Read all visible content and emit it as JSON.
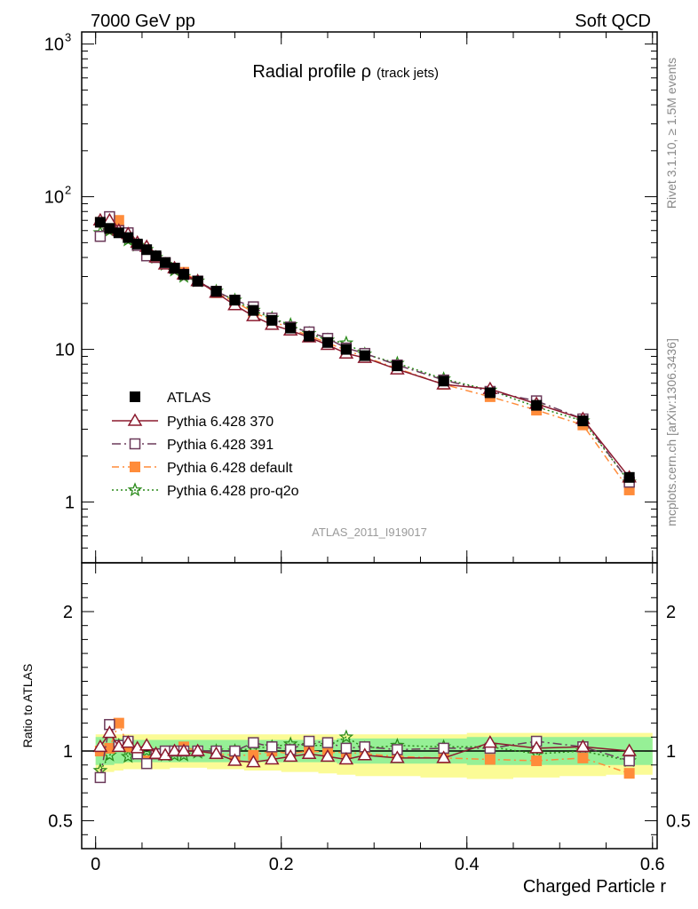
{
  "header": {
    "left": "7000 GeV pp",
    "right": "Soft QCD"
  },
  "side_labels": {
    "rivet": "Rivet 3.1.10, ≥ 1.5M events",
    "mcplots": "mcplots.cern.ch [arXiv:1306.3436]"
  },
  "chart_data": {
    "type": "line",
    "title": "Radial profile ρ",
    "subtitle": "(track jets)",
    "watermark": "ATLAS_2011_I919017",
    "xlabel": "Charged Particle r",
    "ylabel": "",
    "ratio_ylabel": "Ratio to ATLAS",
    "xlim": [
      -0.015,
      0.605
    ],
    "ylim": [
      0.4,
      1200
    ],
    "yscale": "log",
    "ratio_ylim": [
      0.3,
      2.35
    ],
    "x_ticks": [
      "0",
      "0.2",
      "0.4",
      "0.6"
    ],
    "y_ticks": [
      "1",
      "10",
      "10",
      "10"
    ],
    "y_tick_exponents": [
      "",
      "",
      "2",
      "3"
    ],
    "ratio_ticks": [
      "0.5",
      "1",
      "2"
    ],
    "legend_position": "lower-left",
    "x": [
      0.005,
      0.015,
      0.025,
      0.035,
      0.045,
      0.055,
      0.065,
      0.075,
      0.085,
      0.095,
      0.11,
      0.13,
      0.15,
      0.17,
      0.19,
      0.21,
      0.23,
      0.25,
      0.27,
      0.29,
      0.325,
      0.375,
      0.425,
      0.475,
      0.525,
      0.575
    ],
    "band_edges": [
      0.0,
      0.01,
      0.02,
      0.03,
      0.04,
      0.05,
      0.06,
      0.07,
      0.08,
      0.09,
      0.1,
      0.12,
      0.14,
      0.16,
      0.18,
      0.2,
      0.22,
      0.24,
      0.26,
      0.28,
      0.3,
      0.35,
      0.4,
      0.45,
      0.5,
      0.55,
      0.6
    ],
    "band_green": [
      [
        0.9,
        1.1
      ],
      [
        0.9,
        1.1
      ],
      [
        0.91,
        1.09
      ],
      [
        0.92,
        1.08
      ],
      [
        0.92,
        1.08
      ],
      [
        0.92,
        1.08
      ],
      [
        0.92,
        1.08
      ],
      [
        0.92,
        1.08
      ],
      [
        0.92,
        1.08
      ],
      [
        0.92,
        1.08
      ],
      [
        0.92,
        1.08
      ],
      [
        0.92,
        1.08
      ],
      [
        0.92,
        1.08
      ],
      [
        0.92,
        1.08
      ],
      [
        0.92,
        1.08
      ],
      [
        0.92,
        1.08
      ],
      [
        0.92,
        1.08
      ],
      [
        0.92,
        1.08
      ],
      [
        0.91,
        1.09
      ],
      [
        0.91,
        1.09
      ],
      [
        0.91,
        1.09
      ],
      [
        0.91,
        1.09
      ],
      [
        0.9,
        1.1
      ],
      [
        0.9,
        1.1
      ],
      [
        0.9,
        1.1
      ],
      [
        0.9,
        1.1
      ]
    ],
    "band_yellow": [
      [
        0.85,
        1.12
      ],
      [
        0.85,
        1.12
      ],
      [
        0.86,
        1.12
      ],
      [
        0.87,
        1.12
      ],
      [
        0.87,
        1.12
      ],
      [
        0.87,
        1.12
      ],
      [
        0.87,
        1.12
      ],
      [
        0.87,
        1.12
      ],
      [
        0.88,
        1.12
      ],
      [
        0.88,
        1.12
      ],
      [
        0.88,
        1.12
      ],
      [
        0.87,
        1.12
      ],
      [
        0.87,
        1.12
      ],
      [
        0.86,
        1.12
      ],
      [
        0.86,
        1.12
      ],
      [
        0.85,
        1.12
      ],
      [
        0.85,
        1.12
      ],
      [
        0.84,
        1.12
      ],
      [
        0.83,
        1.12
      ],
      [
        0.82,
        1.12
      ],
      [
        0.82,
        1.12
      ],
      [
        0.81,
        1.12
      ],
      [
        0.8,
        1.13
      ],
      [
        0.81,
        1.13
      ],
      [
        0.82,
        1.13
      ],
      [
        0.83,
        1.13
      ]
    ],
    "series": [
      {
        "name": "ATLAS",
        "color": "#000000",
        "marker": "filled-square",
        "dash": "",
        "values": [
          68,
          62,
          58,
          54,
          49,
          45,
          41,
          37,
          34,
          31,
          28,
          24,
          21,
          18,
          15.5,
          13.8,
          12.2,
          11.1,
          10.0,
          9.1,
          7.8,
          6.2,
          5.2,
          4.3,
          3.4,
          1.45
        ],
        "ratio": [
          1,
          1,
          1,
          1,
          1,
          1,
          1,
          1,
          1,
          1,
          1,
          1,
          1,
          1,
          1,
          1,
          1,
          1,
          1,
          1,
          1,
          1,
          1,
          1,
          1,
          1
        ]
      },
      {
        "name": "Pythia 6.428 370",
        "color": "#8b1a2e",
        "marker": "open-triangle",
        "dash": "",
        "values": [
          70,
          70,
          60,
          57,
          50,
          47,
          40,
          36,
          34,
          31,
          28,
          23.5,
          19.5,
          16.5,
          14.5,
          13.3,
          12.0,
          10.7,
          9.4,
          8.8,
          7.4,
          5.9,
          5.5,
          4.4,
          3.5,
          1.45
        ],
        "ratio": [
          1.03,
          1.13,
          1.03,
          1.06,
          1.02,
          1.04,
          0.98,
          0.97,
          1.0,
          1.0,
          1.0,
          0.98,
          0.93,
          0.92,
          0.94,
          0.96,
          0.98,
          0.96,
          0.94,
          0.97,
          0.95,
          0.95,
          1.06,
          1.02,
          1.03,
          1.0
        ]
      },
      {
        "name": "Pythia 6.428 391",
        "color": "#6b3a5a",
        "marker": "open-square",
        "dash": "10,4,2,4",
        "values": [
          55,
          74,
          60,
          58,
          48,
          41,
          40,
          37,
          34,
          31,
          28,
          24,
          21,
          19,
          16,
          14,
          13,
          11.8,
          10.2,
          9.4,
          7.9,
          6.3,
          5.3,
          4.6,
          3.5,
          1.35
        ],
        "ratio": [
          0.81,
          1.19,
          1.04,
          1.07,
          0.98,
          0.91,
          0.98,
          1.0,
          1.0,
          1.0,
          1.0,
          1.0,
          1.0,
          1.06,
          1.03,
          1.01,
          1.07,
          1.06,
          1.02,
          1.03,
          1.01,
          1.02,
          1.02,
          1.07,
          1.03,
          0.93
        ]
      },
      {
        "name": "Pythia 6.428 default",
        "color": "#ff8c3a",
        "marker": "filled-square",
        "dash": "8,4,2,4",
        "values": [
          68,
          62,
          70,
          56,
          48,
          42,
          40,
          37,
          34,
          32,
          28,
          23.5,
          20.5,
          17.5,
          15.5,
          13.6,
          12.3,
          11.0,
          9.9,
          8.9,
          7.5,
          5.9,
          4.9,
          4.0,
          3.2,
          1.2
        ],
        "ratio": [
          1.0,
          1.02,
          1.2,
          1.03,
          0.98,
          0.93,
          0.98,
          1.0,
          1.0,
          1.03,
          1.0,
          0.98,
          0.97,
          0.97,
          1.0,
          0.98,
          1.0,
          0.99,
          0.99,
          0.98,
          0.96,
          0.95,
          0.94,
          0.93,
          0.95,
          0.84
        ]
      },
      {
        "name": "Pythia 6.428 pro-q2o",
        "color": "#2a8a1a",
        "marker": "open-star",
        "dash": "2,3",
        "values": [
          58,
          60,
          60,
          52,
          48,
          45,
          40,
          36,
          33,
          30,
          28,
          24,
          21,
          18,
          16,
          14.5,
          12.7,
          11.5,
          11.0,
          9.3,
          8.1,
          6.4,
          5.4,
          4.2,
          3.4,
          1.35
        ],
        "ratio": [
          0.86,
          0.97,
          1.04,
          0.96,
          0.98,
          1.0,
          0.98,
          0.97,
          0.97,
          0.97,
          0.99,
          1.0,
          1.0,
          1.02,
          1.03,
          1.05,
          1.04,
          1.04,
          1.1,
          1.02,
          1.04,
          1.03,
          1.03,
          0.98,
          1.0,
          0.93
        ]
      }
    ]
  }
}
